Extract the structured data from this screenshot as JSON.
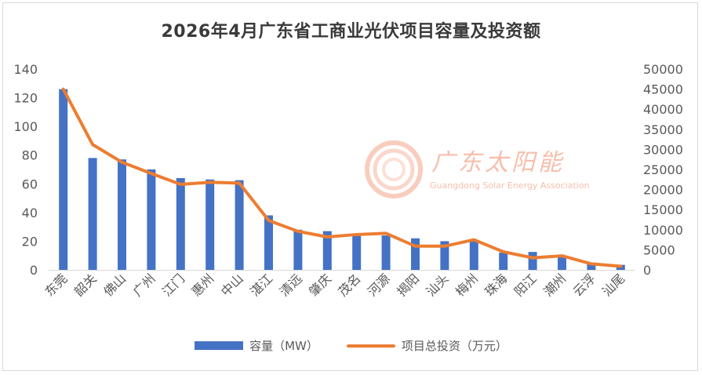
{
  "chart_data": {
    "type": "bar",
    "title": "2026年4月广东省工商业光伏项目容量及投资额",
    "categories": [
      "东莞",
      "韶关",
      "佛山",
      "广州",
      "江门",
      "惠州",
      "中山",
      "湛江",
      "清远",
      "肇庆",
      "茂名",
      "河源",
      "揭阳",
      "汕头",
      "梅州",
      "珠海",
      "阳江",
      "潮州",
      "云浮",
      "汕尾"
    ],
    "series": [
      {
        "name": "容量（MW）",
        "type": "bar",
        "axis": "left",
        "color": "#4472c4",
        "values": [
          126,
          78,
          77,
          70,
          64,
          63,
          62.5,
          38,
          28,
          27,
          24,
          24,
          22,
          20,
          20,
          12,
          12.5,
          9,
          4,
          3.5
        ]
      },
      {
        "name": "项目总投资（万元）",
        "type": "line",
        "axis": "right",
        "color": "#ed7d31",
        "values": [
          45000,
          31200,
          26800,
          24000,
          21300,
          21800,
          21600,
          12300,
          9600,
          8200,
          8800,
          9100,
          5900,
          5900,
          7500,
          4500,
          3000,
          3500,
          1500,
          900
        ]
      }
    ],
    "y_left": {
      "min": 0,
      "max": 140,
      "step": 20,
      "ticks": [
        "0",
        "20",
        "40",
        "60",
        "80",
        "100",
        "120",
        "140"
      ]
    },
    "y_right": {
      "min": 0,
      "max": 50000,
      "step": 5000,
      "ticks": [
        "0",
        "5000",
        "10000",
        "15000",
        "20000",
        "25000",
        "30000",
        "35000",
        "40000",
        "45000",
        "50000"
      ]
    },
    "grid": false,
    "legend_position": "bottom"
  },
  "watermark": {
    "name_cn": "广东太阳能",
    "name_en": "Guangdong Solar Energy Association"
  }
}
